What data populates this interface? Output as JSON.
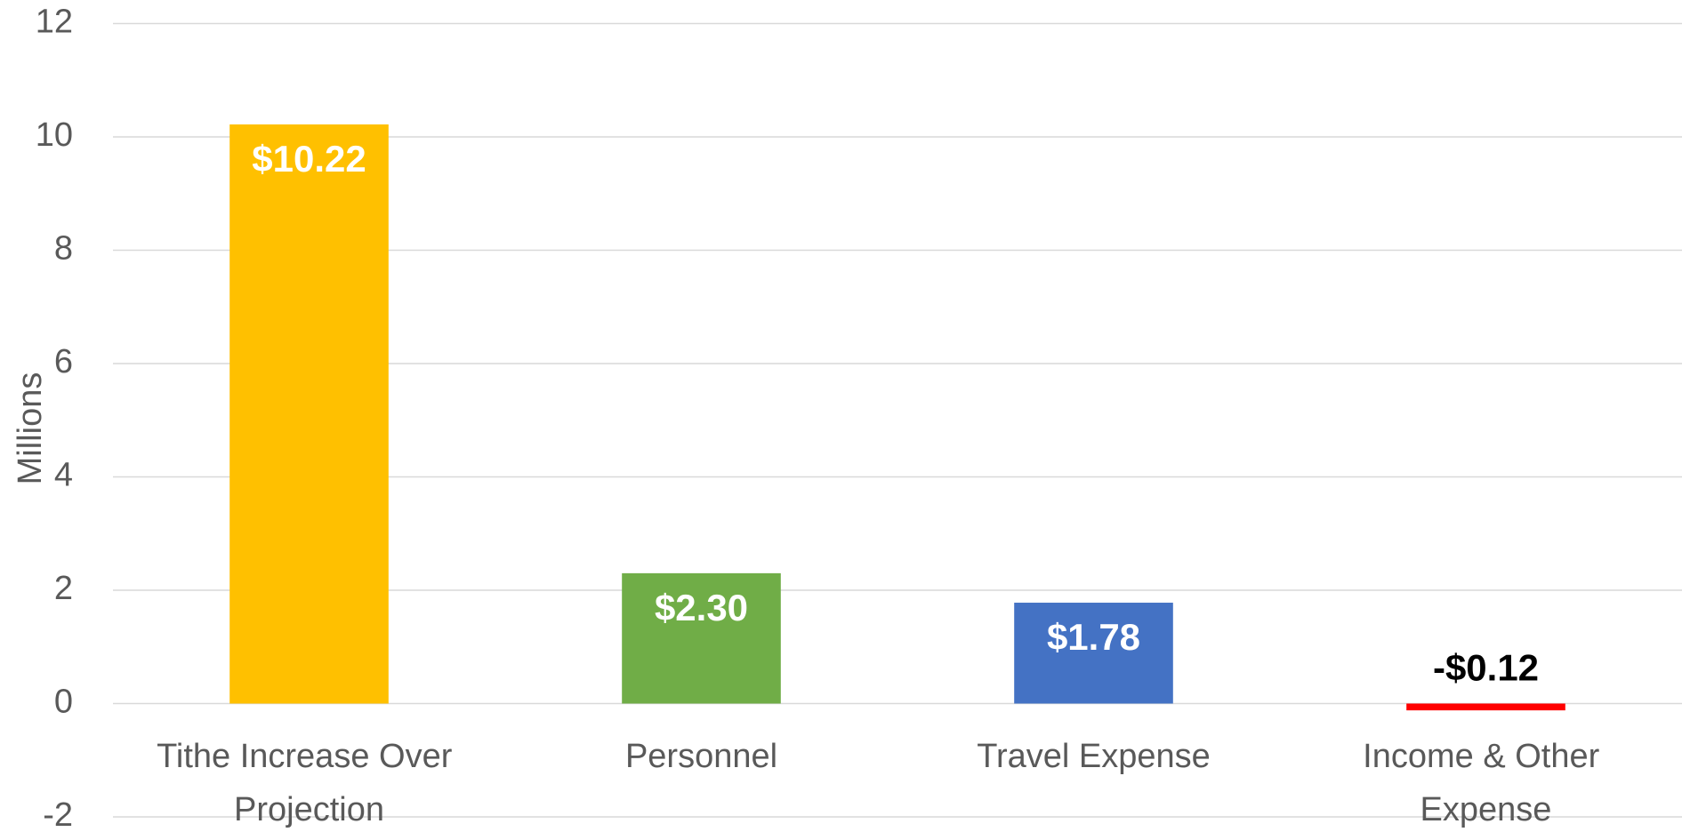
{
  "chart_data": {
    "type": "bar",
    "y_label": "Millions",
    "categories": [
      "Tithe Increase Over Projection",
      "Personnel",
      "Travel Expense",
      "Income & Other Expense"
    ],
    "values": [
      10.22,
      2.3,
      1.78,
      -0.12
    ],
    "value_labels": [
      "$10.22",
      "$2.30",
      "$1.78",
      "-$0.12"
    ],
    "colors": [
      "#FFC000",
      "#70AD47",
      "#4472C4",
      "#FF0000"
    ],
    "value_label_colors": [
      "#FFFFFF",
      "#FFFFFF",
      "#FFFFFF",
      "#000000"
    ],
    "ylim": [
      -2,
      12
    ],
    "yticks": [
      -2,
      0,
      2,
      4,
      6,
      8,
      10,
      12
    ],
    "grid": true
  }
}
